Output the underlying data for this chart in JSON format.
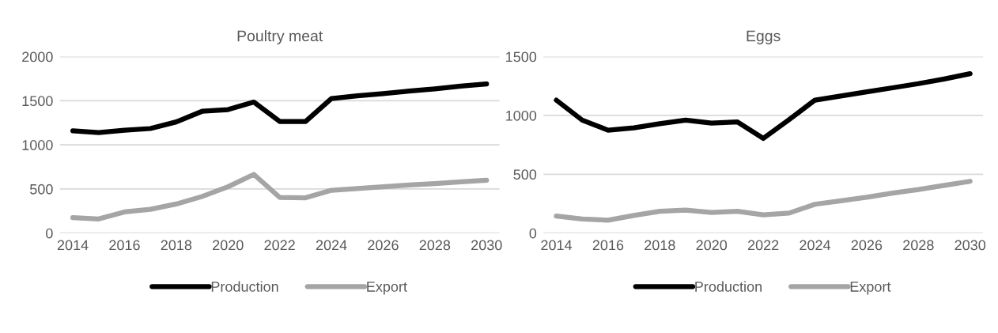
{
  "chart_data": [
    {
      "type": "line",
      "title": "Poultry meat",
      "x": [
        2014,
        2015,
        2016,
        2017,
        2018,
        2019,
        2020,
        2021,
        2022,
        2023,
        2024,
        2025,
        2026,
        2027,
        2028,
        2029,
        2030
      ],
      "series": [
        {
          "name": "Production",
          "color": "#000000",
          "values": [
            1160,
            1140,
            1165,
            1185,
            1260,
            1380,
            1400,
            1485,
            1265,
            1265,
            1525,
            1555,
            1580,
            1610,
            1635,
            1665,
            1690
          ]
        },
        {
          "name": "Export",
          "color": "#a5a5a5",
          "values": [
            175,
            160,
            240,
            270,
            330,
            415,
            525,
            665,
            405,
            400,
            485,
            505,
            525,
            545,
            560,
            580,
            600
          ]
        }
      ],
      "xlim": [
        2013.5,
        2030.5
      ],
      "xticks": [
        2014,
        2016,
        2018,
        2020,
        2022,
        2024,
        2026,
        2028,
        2030
      ],
      "ylim": [
        0,
        2000
      ],
      "yticks": [
        0,
        500,
        1000,
        1500,
        2000
      ],
      "grid": "y",
      "legend": "bottom",
      "marker": "none",
      "line_style": "solid"
    },
    {
      "type": "line",
      "title": "Eggs",
      "x": [
        2014,
        2015,
        2016,
        2017,
        2018,
        2019,
        2020,
        2021,
        2022,
        2023,
        2024,
        2025,
        2026,
        2027,
        2028,
        2029,
        2030
      ],
      "series": [
        {
          "name": "Production",
          "color": "#000000",
          "values": [
            1130,
            960,
            875,
            895,
            930,
            960,
            935,
            945,
            805,
            965,
            1130,
            1165,
            1200,
            1235,
            1270,
            1310,
            1355
          ]
        },
        {
          "name": "Export",
          "color": "#a5a5a5",
          "values": [
            145,
            120,
            110,
            150,
            185,
            195,
            175,
            185,
            155,
            170,
            245,
            275,
            305,
            340,
            370,
            405,
            440
          ]
        }
      ],
      "xlim": [
        2013.5,
        2030.5
      ],
      "xticks": [
        2014,
        2016,
        2018,
        2020,
        2022,
        2024,
        2026,
        2028,
        2030
      ],
      "ylim": [
        0,
        1500
      ],
      "yticks": [
        0,
        500,
        1000,
        1500
      ],
      "grid": "y",
      "legend": "bottom",
      "marker": "none",
      "line_style": "solid"
    }
  ]
}
